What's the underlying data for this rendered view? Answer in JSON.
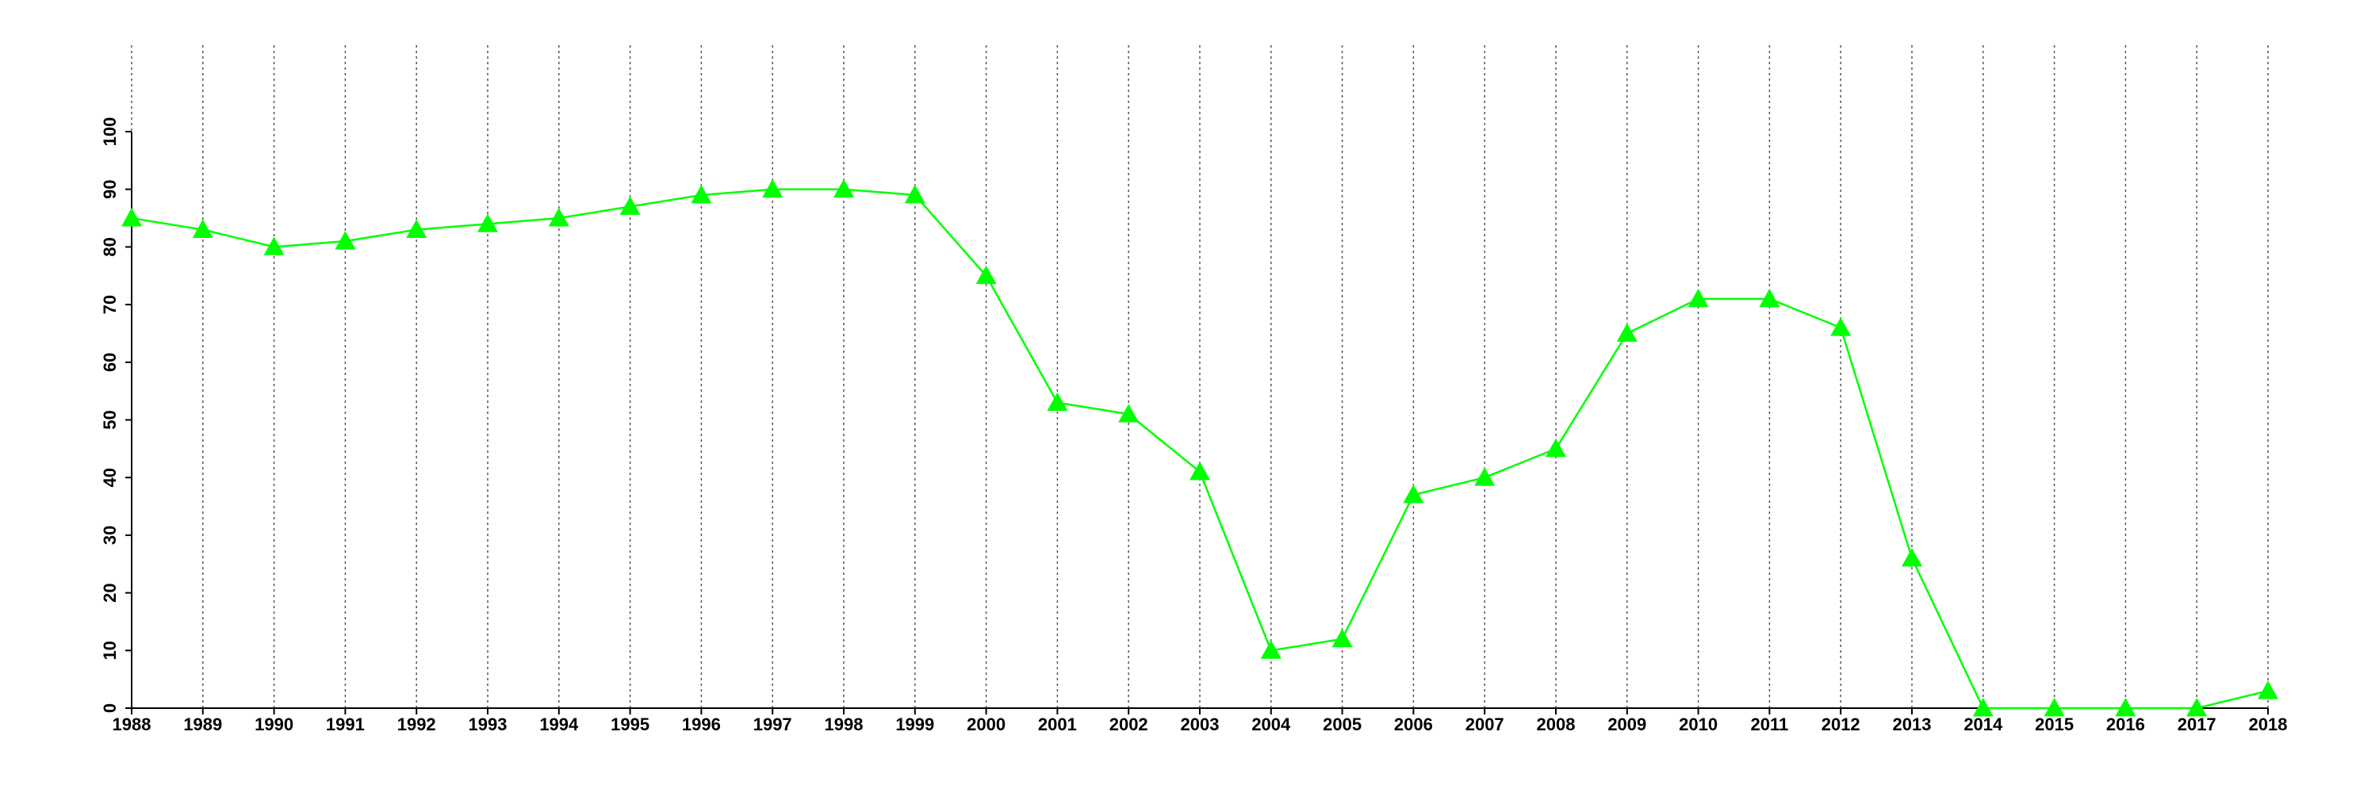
{
  "chart_data": {
    "type": "line",
    "x": [
      1988,
      1989,
      1990,
      1991,
      1992,
      1993,
      1994,
      1995,
      1996,
      1997,
      1998,
      1999,
      2000,
      2001,
      2002,
      2003,
      2004,
      2005,
      2006,
      2007,
      2008,
      2009,
      2010,
      2011,
      2012,
      2013,
      2014,
      2015,
      2016,
      2017,
      2018
    ],
    "series": [
      {
        "color": "#00ff00",
        "marker": "triangle",
        "values": [
          85,
          83,
          80,
          81,
          83,
          84,
          85,
          87,
          89,
          90,
          90,
          89,
          75,
          53,
          51,
          41,
          10,
          12,
          37,
          40,
          45,
          65,
          71,
          71,
          66,
          26,
          0,
          0,
          0,
          0,
          3
        ]
      }
    ],
    "xlim": [
      1988,
      2018
    ],
    "xticks": [
      1988,
      1989,
      1990,
      1991,
      1992,
      1993,
      1994,
      1995,
      1996,
      1997,
      1998,
      1999,
      2000,
      2001,
      2002,
      2003,
      2004,
      2005,
      2006,
      2007,
      2008,
      2009,
      2010,
      2011,
      2012,
      2013,
      2014,
      2015,
      2016,
      2017,
      2018
    ],
    "ylim": [
      0,
      100
    ],
    "yticks": [
      0,
      10,
      20,
      30,
      40,
      50,
      60,
      70,
      80,
      90,
      100
    ],
    "grid": "x"
  }
}
